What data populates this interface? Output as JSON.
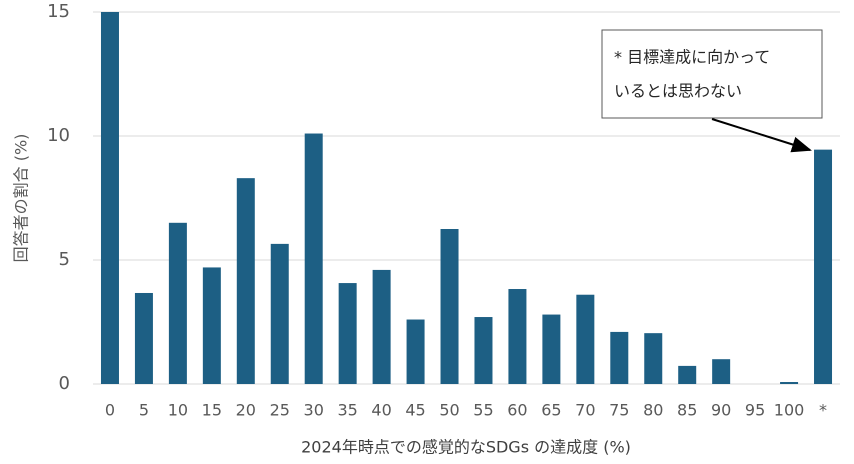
{
  "chart_data": {
    "type": "bar",
    "categories": [
      "0",
      "5",
      "10",
      "15",
      "20",
      "25",
      "30",
      "35",
      "40",
      "45",
      "50",
      "55",
      "60",
      "65",
      "70",
      "75",
      "80",
      "85",
      "90",
      "95",
      "100",
      "*"
    ],
    "values": [
      15.0,
      3.67,
      6.5,
      4.7,
      8.3,
      5.65,
      10.1,
      4.07,
      4.6,
      2.6,
      6.25,
      2.7,
      3.83,
      2.8,
      3.6,
      2.1,
      2.05,
      0.73,
      1.0,
      0,
      0.08,
      9.45
    ],
    "color": "#1d5f84",
    "ylim": [
      0,
      15
    ],
    "yticks": [
      0,
      5,
      10,
      15
    ],
    "grid": true,
    "y_label": "回答者の割合 (%)",
    "x_label": "2024年時点での感覚的なSDGs の達成度 (%)",
    "annotation": [
      "* 目標達成に向かって",
      "いるとは思わない"
    ]
  }
}
